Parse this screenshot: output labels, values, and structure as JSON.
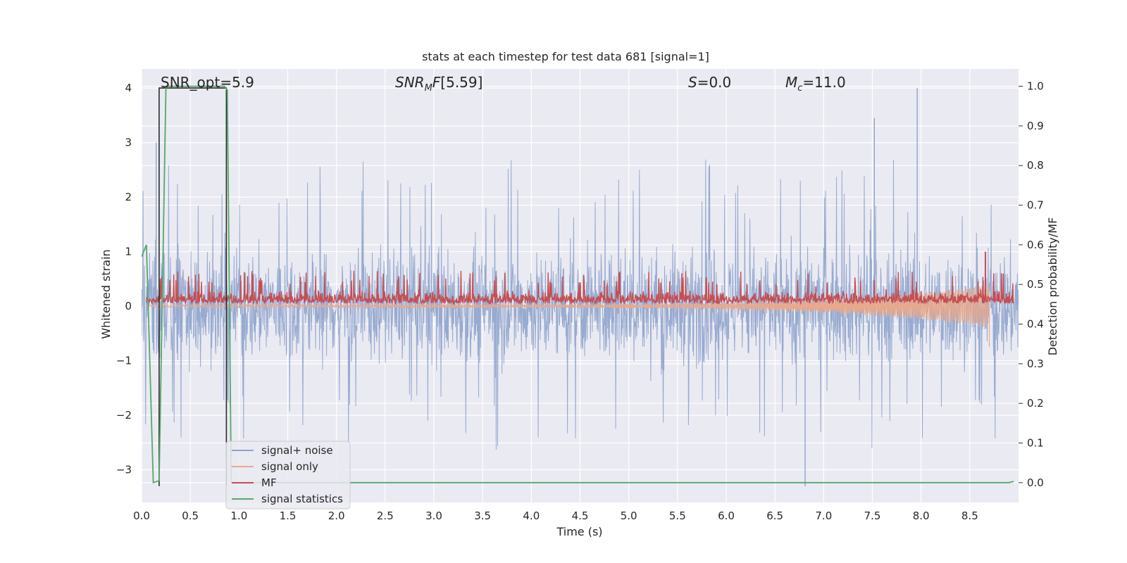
{
  "chart_data": {
    "type": "line",
    "title": "stats at each timestep for test data 681 [signal=1]",
    "xlabel": "Time (s)",
    "ylabel_left": "Whitened strain",
    "ylabel_right": "Detection probability/MF",
    "xlim": [
      0,
      9.0
    ],
    "ylim_left": [
      -3.6,
      4.35
    ],
    "ylim_right": [
      -0.05,
      1.0436
    ],
    "x_ticks": [
      "0.0",
      "0.5",
      "1.0",
      "1.5",
      "2.0",
      "2.5",
      "3.0",
      "3.5",
      "4.0",
      "4.5",
      "5.0",
      "5.5",
      "6.0",
      "6.5",
      "7.0",
      "7.5",
      "8.0",
      "8.5"
    ],
    "y_ticks_left": [
      "−3",
      "−2",
      "−1",
      "0",
      "1",
      "2",
      "3",
      "4"
    ],
    "y_ticks_right": [
      "0.0",
      "0.1",
      "0.2",
      "0.3",
      "0.4",
      "0.5",
      "0.6",
      "0.7",
      "0.8",
      "0.9",
      "1.0"
    ],
    "grid": true,
    "legend_position": "lower-left",
    "annotations": {
      "snr_opt": "SNR_opt=5.9",
      "snr_mf": "[5.59]",
      "s": "=0.0",
      "mc": "=11.0"
    },
    "series": [
      {
        "name": "signal+ noise",
        "axis": "left",
        "color": "#8ea3cc",
        "description": "whitened noise band approx -1.8..1.8 with spikes",
        "notable_points": [
          [
            0.15,
            3.0
          ],
          [
            7.52,
            3.45
          ],
          [
            7.96,
            4.0
          ],
          [
            6.81,
            -3.3
          ]
        ]
      },
      {
        "name": "signal only",
        "axis": "left",
        "color": "#e8a98c",
        "description": "chirp growing in amplitude toward merger near 8.7 s",
        "notable_points": [
          [
            8.7,
            0.1
          ],
          [
            8.7,
            -0.75
          ]
        ]
      },
      {
        "name": "MF",
        "axis": "left",
        "color": "#c44e52",
        "description": "matched filter output approx 0..0.5 with peak near 8.66 s",
        "notable_points": [
          [
            8.66,
            1.0
          ]
        ]
      },
      {
        "name": "signal statistics",
        "axis": "right",
        "color": "#55a868",
        "x": [
          0.0,
          0.05,
          0.12,
          0.18,
          0.25,
          0.85,
          0.88,
          0.92,
          1.0,
          8.9,
          8.95
        ],
        "y": [
          0.57,
          0.6,
          0.0,
          0.005,
          1.0,
          1.0,
          0.99,
          0.0,
          0.0,
          0.0,
          0.003
        ]
      },
      {
        "name": "",
        "axis": "left",
        "color": "#2b2b2b",
        "x": [
          0.18,
          0.18,
          0.87,
          0.87
        ],
        "y": [
          -3.3,
          4.0,
          4.0,
          -3.3
        ]
      }
    ]
  }
}
